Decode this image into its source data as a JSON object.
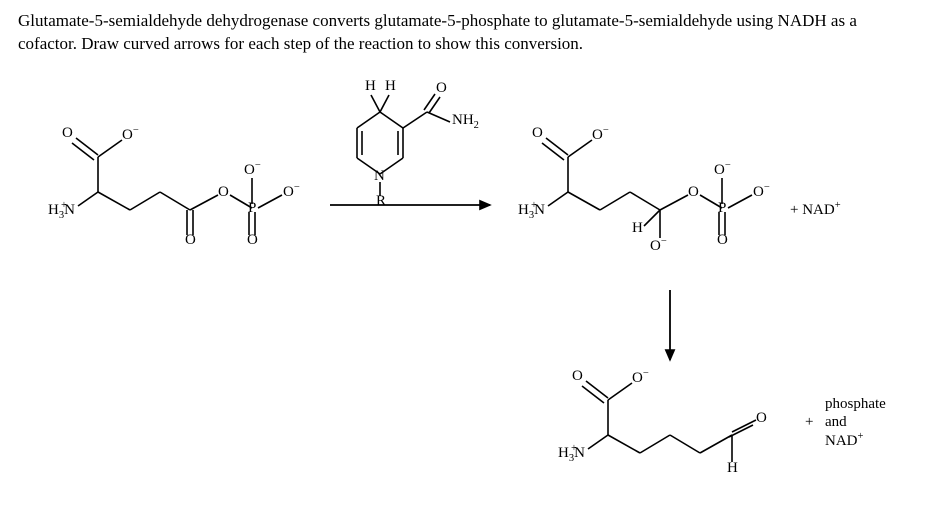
{
  "question": {
    "line1": "Glutamate-5-semialdehyde dehydrogenase converts glutamate-5-phosphate to glutamate-5-semialdehyde using NADH as a",
    "line2": "cofactor. Draw curved arrows for each step of the reaction to show this conversion."
  },
  "labels": {
    "H": "H",
    "H3N_plus_html": "H<sub>3</sub>N<sup style=\"margin-left:-14px;\">+</sup>",
    "NH2_html": "NH<sub>2</sub>",
    "N": "N",
    "R": "R",
    "O": "O",
    "O_minus_html": "O<sup>&#8722;</sup>",
    "P": "P",
    "plus_NAD_html": "+ NAD<sup>+</sup>",
    "phosphate": "phosphate",
    "and": "and",
    "NAD_html": "NAD<sup>+</sup>",
    "plus": "+"
  },
  "style": {
    "stroke": "#000000",
    "bond_w": 1.6,
    "arrow_w": 1.8,
    "bg": "#ffffff"
  }
}
